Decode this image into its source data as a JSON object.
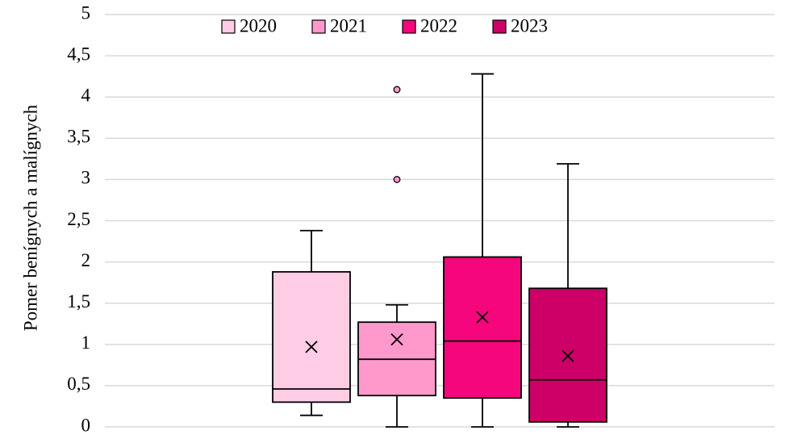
{
  "chart_data": {
    "type": "box",
    "y_label": "Pomer benígnych a malígnych",
    "ylim": [
      0,
      5
    ],
    "yticks": [
      0,
      {
        "value": 0.5,
        "label": "0,5"
      },
      1,
      {
        "value": 1.5,
        "label": "1,5"
      },
      2,
      {
        "value": 2.5,
        "label": "2,5"
      },
      3,
      {
        "value": 3.5,
        "label": "3,5"
      },
      4,
      {
        "value": 4.5,
        "label": "4,5"
      },
      5
    ],
    "grid": true,
    "legend": "top",
    "series": [
      {
        "name": "2020",
        "color": "#ffcce6",
        "min": 0.14,
        "q1": 0.3,
        "median": 0.46,
        "q3": 1.88,
        "max": 2.38,
        "mean": 0.97,
        "outliers": []
      },
      {
        "name": "2021",
        "color": "#ff99cc",
        "min": 0,
        "q1": 0.38,
        "median": 0.82,
        "q3": 1.27,
        "max": 1.48,
        "mean": 1.06,
        "outliers": [
          3.0,
          4.09
        ]
      },
      {
        "name": "2022",
        "color": "#f5067c",
        "min": 0,
        "q1": 0.35,
        "median": 1.04,
        "q3": 2.06,
        "max": 4.28,
        "mean": 1.33,
        "outliers": []
      },
      {
        "name": "2023",
        "color": "#cc0066",
        "min": 0,
        "q1": 0.06,
        "median": 0.57,
        "q3": 1.68,
        "max": 3.19,
        "mean": 0.86,
        "outliers": []
      }
    ]
  }
}
